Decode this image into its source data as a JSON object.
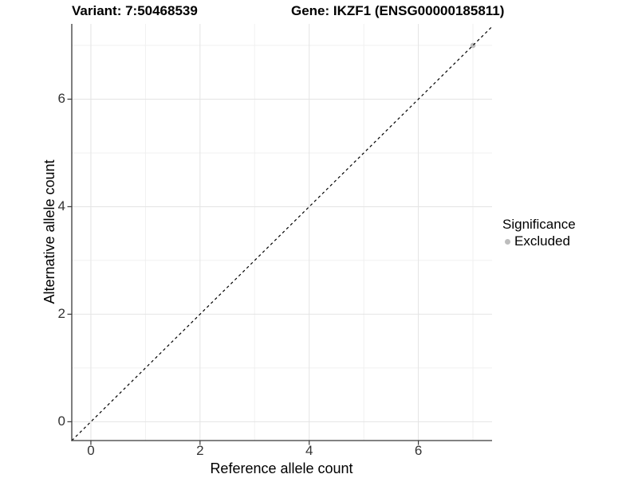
{
  "header": {
    "variant_title": "Variant: 7:50468539",
    "gene_title": "Gene: IKZF1 (ENSG00000185811)"
  },
  "chart_data": {
    "type": "scatter",
    "x": {
      "label": "Reference allele count",
      "ticks": [
        0,
        2,
        4,
        6
      ],
      "minor_ticks": [
        1,
        3,
        5,
        7
      ],
      "range": [
        -0.35,
        7.35
      ]
    },
    "y": {
      "label": "Alternative allele count",
      "ticks": [
        0,
        2,
        4,
        6
      ],
      "minor_ticks": [
        1,
        3,
        5,
        7
      ],
      "range": [
        -0.35,
        7.4
      ]
    },
    "points": [
      {
        "x": 7,
        "y": 7,
        "group": "Excluded"
      }
    ],
    "point_color": "#bdbdbd",
    "reference_line": {
      "slope": 1,
      "intercept": 0,
      "style": "dashed",
      "color": "#000000"
    },
    "grid": {
      "major_color": "#e4e4e4",
      "minor_color": "#f0f0f0",
      "background": "#ffffff"
    },
    "axis_line_color": "#383838",
    "legend": {
      "title": "Significance",
      "position": "right",
      "items": [
        {
          "label": "Excluded",
          "color": "#bdbdbd"
        }
      ]
    }
  }
}
